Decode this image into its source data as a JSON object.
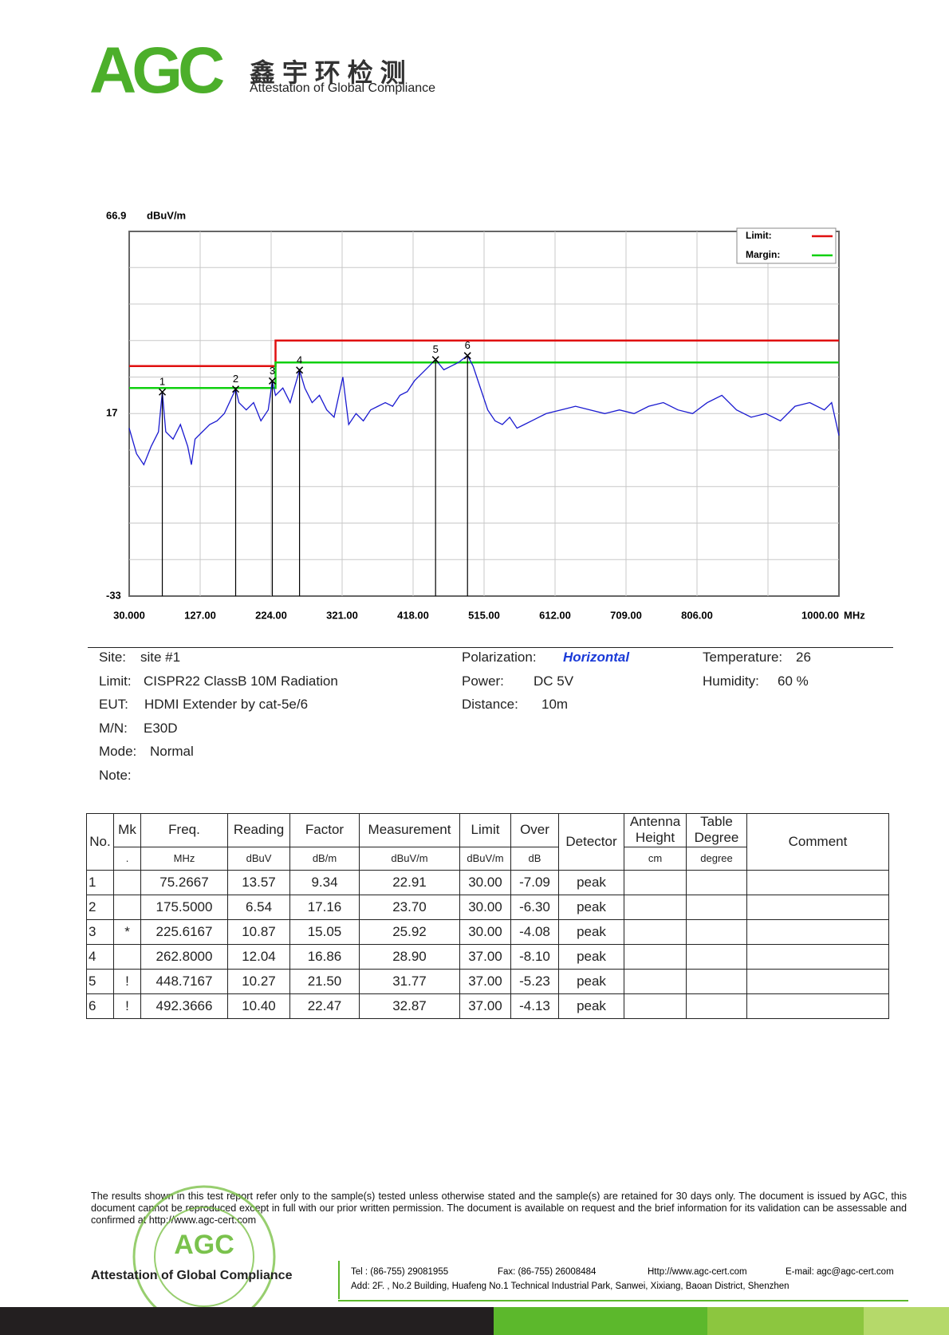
{
  "header": {
    "logo": "AGC",
    "chinese": "鑫 宇 环 检 测",
    "tagline": "Attestation of Global Compliance"
  },
  "chart_data": {
    "type": "line",
    "y_unit": "dBuV/m",
    "x_unit": "MHz",
    "xlim": [
      30,
      1000
    ],
    "xticks": [
      {
        "value": 30,
        "label": "30.000"
      },
      {
        "value": 127,
        "label": "127.00"
      },
      {
        "value": 224,
        "label": "224.00"
      },
      {
        "value": 321,
        "label": "321.00"
      },
      {
        "value": 418,
        "label": "418.00"
      },
      {
        "value": 515,
        "label": "515.00"
      },
      {
        "value": 612,
        "label": "612.00"
      },
      {
        "value": 709,
        "label": "709.00"
      },
      {
        "value": 806,
        "label": "806.00"
      },
      {
        "value": 1000,
        "label": "1000.00"
      }
    ],
    "xgrid": [
      903
    ],
    "ylim": [
      -33,
      66.9
    ],
    "yticks": [
      -33,
      17,
      66.9
    ],
    "ygrid": [
      -23,
      -13,
      -3,
      7,
      27,
      37,
      47,
      57
    ],
    "legend": "upper right",
    "series": [
      {
        "name": "Limit:",
        "color": "#e01010",
        "x": [
          30,
          230,
          230,
          1000
        ],
        "values": [
          30,
          30,
          37,
          37
        ]
      },
      {
        "name": "Margin:",
        "color": "#10d010",
        "x": [
          30,
          230,
          230,
          1000
        ],
        "values": [
          24,
          24,
          31,
          31
        ]
      },
      {
        "color": "#1a1ad0",
        "x": [
          30,
          40,
          50,
          60,
          70,
          75.27,
          80,
          90,
          100,
          110,
          115,
          120,
          130,
          140,
          150,
          160,
          175.5,
          180,
          190,
          200,
          210,
          220,
          225.6,
          230,
          240,
          250,
          262.8,
          270,
          280,
          290,
          300,
          310,
          322,
          330,
          340,
          350,
          360,
          370,
          380,
          390,
          400,
          410,
          420,
          430,
          440,
          448.7,
          460,
          470,
          480,
          492.4,
          500,
          510,
          520,
          530,
          540,
          550,
          560,
          570,
          580,
          590,
          600,
          620,
          640,
          660,
          680,
          700,
          720,
          740,
          760,
          780,
          800,
          820,
          840,
          860,
          880,
          900,
          920,
          940,
          960,
          980,
          990,
          1000
        ],
        "values": [
          13,
          6,
          3,
          8,
          12,
          22.9,
          12,
          10,
          14,
          8,
          3,
          10,
          12,
          14,
          15,
          17,
          23.7,
          20,
          18,
          20,
          15,
          18,
          25.9,
          22,
          24,
          20,
          28.9,
          24,
          20,
          22,
          18,
          16,
          27,
          14,
          17,
          15,
          18,
          19,
          20,
          19,
          22,
          23,
          26,
          28,
          30,
          31.8,
          29,
          30,
          31,
          32.9,
          30,
          24,
          18,
          15,
          14,
          16,
          13,
          14,
          15,
          16,
          17,
          18,
          19,
          18,
          17,
          18,
          17,
          19,
          20,
          18,
          17,
          20,
          22,
          18,
          16,
          17,
          15,
          19,
          20,
          18,
          20,
          11
        ]
      }
    ],
    "markers": {
      "labels": [
        "1",
        "2",
        "3",
        "4",
        "5",
        "6"
      ],
      "x": [
        75.2667,
        175.5,
        225.6167,
        262.8,
        448.7167,
        492.3666
      ],
      "values": [
        22.91,
        23.7,
        25.92,
        28.9,
        31.77,
        32.87
      ]
    }
  },
  "info": {
    "site": {
      "label": "Site:",
      "value": "site #1"
    },
    "limit": {
      "label": "Limit:",
      "value": "CISPR22 ClassB 10M Radiation"
    },
    "eut": {
      "label": "EUT:",
      "value": "HDMI Extender by cat-5e/6"
    },
    "mn": {
      "label": "M/N:",
      "value": "E30D"
    },
    "mode": {
      "label": "Mode:",
      "value": "Normal"
    },
    "note": {
      "label": "Note:"
    },
    "polarization": {
      "label": "Polarization:",
      "value": "Horizontal"
    },
    "power": {
      "label": "Power:",
      "value": "DC 5V"
    },
    "distance": {
      "label": "Distance:",
      "value": "10m"
    },
    "temperature": {
      "label": "Temperature:",
      "value": "26"
    },
    "humidity": {
      "label": "Humidity:",
      "value": "60 %"
    }
  },
  "table": {
    "headers": [
      {
        "text": "No."
      },
      {
        "text": "Mk",
        "unit": "."
      },
      {
        "text": "Freq.",
        "unit": "MHz"
      },
      {
        "text": "Reading",
        "unit": "dBuV"
      },
      {
        "text": "Factor",
        "unit": "dB/m"
      },
      {
        "text": "Measurement",
        "unit": "dBuV/m"
      },
      {
        "text": "Limit",
        "unit": "dBuV/m"
      },
      {
        "text": "Over",
        "unit": "dB"
      },
      {
        "text": "Detector"
      },
      {
        "text": "Antenna Height",
        "unit": "cm"
      },
      {
        "text": "Table Degree",
        "unit": "degree"
      },
      {
        "text": "Comment"
      }
    ],
    "rows": [
      [
        "1",
        null,
        "75.2667",
        "13.57",
        "9.34",
        "22.91",
        "30.00",
        "-7.09",
        "peak"
      ],
      [
        "2",
        null,
        "175.5000",
        "6.54",
        "17.16",
        "23.70",
        "30.00",
        "-6.30",
        "peak"
      ],
      [
        "3",
        "*",
        "225.6167",
        "10.87",
        "15.05",
        "25.92",
        "30.00",
        "-4.08",
        "peak"
      ],
      [
        "4",
        null,
        "262.8000",
        "12.04",
        "16.86",
        "28.90",
        "37.00",
        "-8.10",
        "peak"
      ],
      [
        "5",
        "!",
        "448.7167",
        "10.27",
        "21.50",
        "31.77",
        "37.00",
        "-5.23",
        "peak"
      ],
      [
        "6",
        "!",
        "492.3666",
        "10.40",
        "22.47",
        "32.87",
        "37.00",
        "-4.13",
        "peak"
      ]
    ]
  },
  "footer": {
    "disclaimer": "The results shown in this test report refer only to the sample(s) tested unless otherwise stated and the sample(s) are retained for 30 days only. The document is issued by AGC, this document cannot be reproduced except in full with our prior written permission. The document is available on request and the brief information for its validation can be assessable and confirmed at http://www.agc-cert.com",
    "stamp": "AGC",
    "tagline": "Attestation of Global Compliance",
    "tel": "Tel : (86-755)  29081955",
    "fax": "Fax: (86-755) 26008484",
    "web": "Http://www.agc-cert.com",
    "email": "E-mail: agc@agc-cert.com",
    "address": "Add: 2F. , No.2 Building, Huafeng No.1 Technical Industrial Park, Sanwei, Xixiang, Baoan District, Shenzhen"
  }
}
